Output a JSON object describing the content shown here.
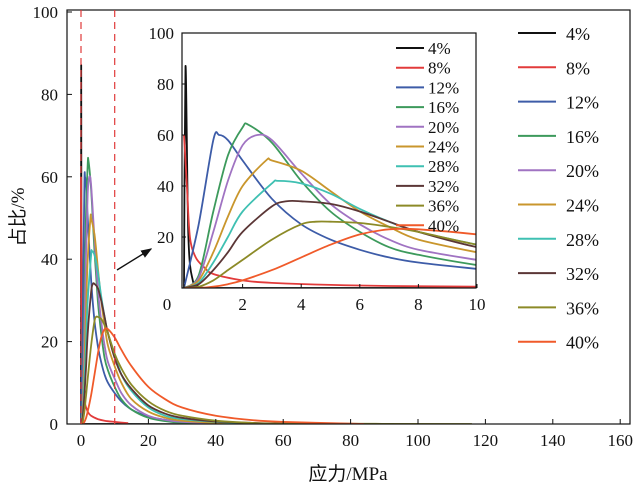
{
  "chart_data": {
    "type": "line",
    "xlabel": "应力/MPa",
    "ylabel": "占比/%",
    "xlim": [
      0,
      160
    ],
    "ylim": [
      0,
      100
    ],
    "xticks": [
      0,
      20,
      40,
      60,
      80,
      100,
      120,
      140,
      160
    ],
    "yticks": [
      0,
      20,
      40,
      60,
      80,
      100
    ],
    "grid": false,
    "legend_placement": "right",
    "zoom_region": {
      "xlim": [
        0,
        10
      ],
      "style": "red dashed vertical lines",
      "arrow": "points to inset"
    },
    "inset": {
      "xlim": [
        0,
        10
      ],
      "ylim": [
        0,
        100
      ],
      "xticks": [
        0,
        2,
        4,
        6,
        8,
        10
      ],
      "yticks": [
        20,
        40,
        60,
        80,
        100
      ],
      "legend_placement": "top-right"
    },
    "series": [
      {
        "name": "4%",
        "color": "#111111",
        "points": [
          [
            0,
            0
          ],
          [
            0.05,
            87
          ],
          [
            0.15,
            20
          ],
          [
            0.3,
            3
          ],
          [
            0.5,
            0.5
          ],
          [
            1,
            0
          ],
          [
            50,
            0
          ]
        ]
      },
      {
        "name": "8%",
        "color": "#e23b3b",
        "points": [
          [
            0,
            60
          ],
          [
            0.1,
            40
          ],
          [
            0.2,
            20
          ],
          [
            0.4,
            12
          ],
          [
            0.7,
            8
          ],
          [
            1,
            5.5
          ],
          [
            2,
            3
          ],
          [
            3,
            2
          ],
          [
            5,
            1.2
          ],
          [
            7,
            0.8
          ],
          [
            10,
            0.5
          ],
          [
            14,
            0.2
          ]
        ]
      },
      {
        "name": "12%",
        "color": "#3d5ca8",
        "points": [
          [
            0,
            0
          ],
          [
            0.5,
            25
          ],
          [
            1,
            58
          ],
          [
            1.2,
            60
          ],
          [
            1.5,
            58
          ],
          [
            2,
            50
          ],
          [
            3,
            35
          ],
          [
            4,
            25
          ],
          [
            5,
            19
          ],
          [
            6,
            15
          ],
          [
            7,
            12
          ],
          [
            8,
            10
          ],
          [
            10,
            7.5
          ],
          [
            12,
            5.5
          ],
          [
            15,
            3.5
          ],
          [
            20,
            1.8
          ],
          [
            25,
            1
          ],
          [
            30,
            0.5
          ],
          [
            40,
            0.2
          ],
          [
            50,
            0.1
          ],
          [
            60,
            0
          ]
        ]
      },
      {
        "name": "16%",
        "color": "#3d9a5c",
        "points": [
          [
            0,
            0
          ],
          [
            0.5,
            5
          ],
          [
            1,
            30
          ],
          [
            1.5,
            52
          ],
          [
            2,
            63
          ],
          [
            2.2,
            64
          ],
          [
            3,
            57
          ],
          [
            4,
            42
          ],
          [
            5,
            30
          ],
          [
            6,
            22
          ],
          [
            7,
            16
          ],
          [
            8,
            13
          ],
          [
            10,
            9
          ],
          [
            12,
            6
          ],
          [
            15,
            3.5
          ],
          [
            20,
            1.5
          ],
          [
            25,
            0.7
          ],
          [
            30,
            0.3
          ],
          [
            40,
            0.1
          ],
          [
            60,
            0
          ]
        ]
      },
      {
        "name": "20%",
        "color": "#a073c2",
        "points": [
          [
            0,
            0
          ],
          [
            0.5,
            4
          ],
          [
            1,
            22
          ],
          [
            1.5,
            42
          ],
          [
            2,
            56
          ],
          [
            2.5,
            60
          ],
          [
            3,
            58
          ],
          [
            4,
            45
          ],
          [
            5,
            33
          ],
          [
            6,
            25
          ],
          [
            7,
            19
          ],
          [
            8,
            15
          ],
          [
            10,
            11
          ],
          [
            12,
            7.5
          ],
          [
            15,
            4.5
          ],
          [
            20,
            2
          ],
          [
            25,
            1
          ],
          [
            30,
            0.5
          ],
          [
            40,
            0.2
          ],
          [
            50,
            0.1
          ],
          [
            60,
            0
          ]
        ]
      },
      {
        "name": "24%",
        "color": "#c9962c",
        "points": [
          [
            0,
            0
          ],
          [
            0.5,
            3
          ],
          [
            1,
            14
          ],
          [
            1.5,
            28
          ],
          [
            2,
            40
          ],
          [
            2.8,
            50
          ],
          [
            3,
            50
          ],
          [
            4,
            46
          ],
          [
            5,
            38
          ],
          [
            6,
            30
          ],
          [
            7,
            24
          ],
          [
            8,
            19
          ],
          [
            10,
            14
          ],
          [
            12,
            10
          ],
          [
            15,
            6
          ],
          [
            20,
            3
          ],
          [
            25,
            1.5
          ],
          [
            30,
            0.8
          ],
          [
            40,
            0.3
          ],
          [
            50,
            0.1
          ],
          [
            60,
            0
          ]
        ]
      },
      {
        "name": "28%",
        "color": "#3fc0b2",
        "points": [
          [
            0,
            0
          ],
          [
            0.5,
            2
          ],
          [
            1,
            10
          ],
          [
            1.5,
            20
          ],
          [
            2,
            30
          ],
          [
            3,
            41
          ],
          [
            3.2,
            42
          ],
          [
            4,
            41
          ],
          [
            5,
            37
          ],
          [
            6,
            31
          ],
          [
            7,
            26
          ],
          [
            8,
            22
          ],
          [
            10,
            17
          ],
          [
            12,
            12
          ],
          [
            15,
            8
          ],
          [
            20,
            4
          ],
          [
            25,
            2
          ],
          [
            30,
            1.2
          ],
          [
            40,
            0.5
          ],
          [
            50,
            0.2
          ],
          [
            60,
            0.1
          ],
          [
            80,
            0
          ]
        ]
      },
      {
        "name": "32%",
        "color": "#5b3636",
        "points": [
          [
            0,
            0
          ],
          [
            0.5,
            1.5
          ],
          [
            1,
            7
          ],
          [
            1.5,
            14
          ],
          [
            2,
            22
          ],
          [
            3,
            32
          ],
          [
            3.5,
            34
          ],
          [
            4,
            34
          ],
          [
            5,
            33
          ],
          [
            6,
            30
          ],
          [
            7,
            26
          ],
          [
            8,
            22
          ],
          [
            10,
            16
          ],
          [
            12,
            12
          ],
          [
            15,
            8.5
          ],
          [
            20,
            4.5
          ],
          [
            25,
            2.5
          ],
          [
            30,
            1.5
          ],
          [
            40,
            0.6
          ],
          [
            50,
            0.3
          ],
          [
            60,
            0.1
          ],
          [
            80,
            0
          ]
        ]
      },
      {
        "name": "36%",
        "color": "#8c8a27",
        "points": [
          [
            0,
            0
          ],
          [
            0.5,
            0.5
          ],
          [
            1,
            3
          ],
          [
            1.5,
            7
          ],
          [
            2,
            11
          ],
          [
            3,
            19
          ],
          [
            4,
            25
          ],
          [
            4.5,
            26
          ],
          [
            5,
            26
          ],
          [
            6,
            25.5
          ],
          [
            7,
            24
          ],
          [
            8,
            22
          ],
          [
            10,
            17
          ],
          [
            12,
            13.5
          ],
          [
            15,
            9.5
          ],
          [
            20,
            5.5
          ],
          [
            25,
            3.2
          ],
          [
            30,
            2
          ],
          [
            40,
            0.8
          ],
          [
            50,
            0.3
          ],
          [
            60,
            0.1
          ],
          [
            116,
            0
          ]
        ]
      },
      {
        "name": "40%",
        "color": "#f05a2a",
        "points": [
          [
            0,
            0
          ],
          [
            0.5,
            0
          ],
          [
            1,
            0.5
          ],
          [
            1.5,
            1.5
          ],
          [
            2,
            3
          ],
          [
            3,
            7
          ],
          [
            4,
            12
          ],
          [
            5,
            17
          ],
          [
            6,
            21
          ],
          [
            7,
            23
          ],
          [
            8,
            23
          ],
          [
            10,
            21
          ],
          [
            12,
            18
          ],
          [
            15,
            14
          ],
          [
            20,
            9
          ],
          [
            25,
            6
          ],
          [
            30,
            4
          ],
          [
            40,
            2
          ],
          [
            50,
            1
          ],
          [
            60,
            0.5
          ],
          [
            80,
            0.1
          ],
          [
            84,
            0
          ]
        ]
      }
    ]
  }
}
